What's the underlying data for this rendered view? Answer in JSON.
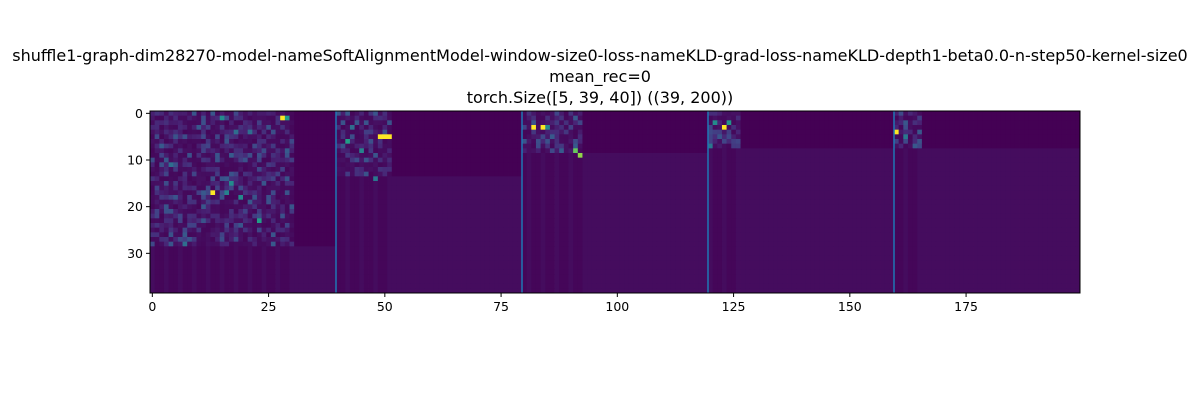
{
  "chart_data": {
    "type": "heatmap",
    "title_lines": [
      "shuffle1-graph-dim28270-model-nameSoftAlignmentModel-window-size0-loss-nameKLD-grad-loss-nameKLD-depth1-beta0.0-n-step50-kernel-size0",
      "mean_rec=0",
      "torch.Size([5, 39, 40]) ((39, 200))"
    ],
    "rows": 39,
    "cols": 200,
    "x_ticks": [
      0,
      25,
      50,
      75,
      100,
      125,
      150,
      175
    ],
    "y_ticks": [
      0,
      10,
      20,
      30
    ],
    "xlim": [
      -0.5,
      199.5
    ],
    "ylim": [
      38.5,
      -0.5
    ],
    "colormap": "viridis",
    "separator_lines_x": [
      39.5,
      79.5,
      119.5,
      159.5
    ],
    "separator_color": "#1f77b4",
    "blocks": [
      {
        "col_start": 0,
        "col_end": 39,
        "active_rows": 29,
        "active_cols": 31
      },
      {
        "col_start": 40,
        "col_end": 79,
        "active_rows": 14,
        "active_cols": 12
      },
      {
        "col_start": 80,
        "col_end": 119,
        "active_rows": 9,
        "active_cols": 13
      },
      {
        "col_start": 120,
        "col_end": 159,
        "active_rows": 8,
        "active_cols": 7
      },
      {
        "col_start": 160,
        "col_end": 199,
        "active_rows": 8,
        "active_cols": 6
      }
    ],
    "hot_cells": [
      {
        "row": 1,
        "col": 15,
        "v": 0.6
      },
      {
        "row": 1,
        "col": 28,
        "v": 1.0
      },
      {
        "row": 1,
        "col": 29,
        "v": 0.7
      },
      {
        "row": 4,
        "col": 18,
        "v": 0.45
      },
      {
        "row": 4,
        "col": 21,
        "v": 0.45
      },
      {
        "row": 17,
        "col": 13,
        "v": 1.0
      },
      {
        "row": 15,
        "col": 17,
        "v": 0.6
      },
      {
        "row": 17,
        "col": 16,
        "v": 0.55
      },
      {
        "row": 18,
        "col": 19,
        "v": 0.6
      },
      {
        "row": 23,
        "col": 23,
        "v": 0.7
      },
      {
        "row": 11,
        "col": 4,
        "v": 0.45
      },
      {
        "row": 28,
        "col": 7,
        "v": 0.45
      },
      {
        "row": 3,
        "col": 43,
        "v": 0.45
      },
      {
        "row": 6,
        "col": 42,
        "v": 0.7
      },
      {
        "row": 5,
        "col": 49,
        "v": 1.0
      },
      {
        "row": 5,
        "col": 50,
        "v": 1.0
      },
      {
        "row": 5,
        "col": 51,
        "v": 1.0
      },
      {
        "row": 8,
        "col": 45,
        "v": 0.55
      },
      {
        "row": 14,
        "col": 48,
        "v": 0.5
      },
      {
        "row": 3,
        "col": 82,
        "v": 1.0
      },
      {
        "row": 3,
        "col": 84,
        "v": 1.0
      },
      {
        "row": 3,
        "col": 85,
        "v": 0.6
      },
      {
        "row": 8,
        "col": 91,
        "v": 0.85
      },
      {
        "row": 9,
        "col": 92,
        "v": 0.9
      },
      {
        "row": 2,
        "col": 121,
        "v": 0.6
      },
      {
        "row": 3,
        "col": 123,
        "v": 1.0
      },
      {
        "row": 2,
        "col": 124,
        "v": 0.65
      },
      {
        "row": 7,
        "col": 120,
        "v": 0.5
      },
      {
        "row": 4,
        "col": 160,
        "v": 1.0
      },
      {
        "row": 5,
        "col": 162,
        "v": 0.5
      }
    ]
  }
}
